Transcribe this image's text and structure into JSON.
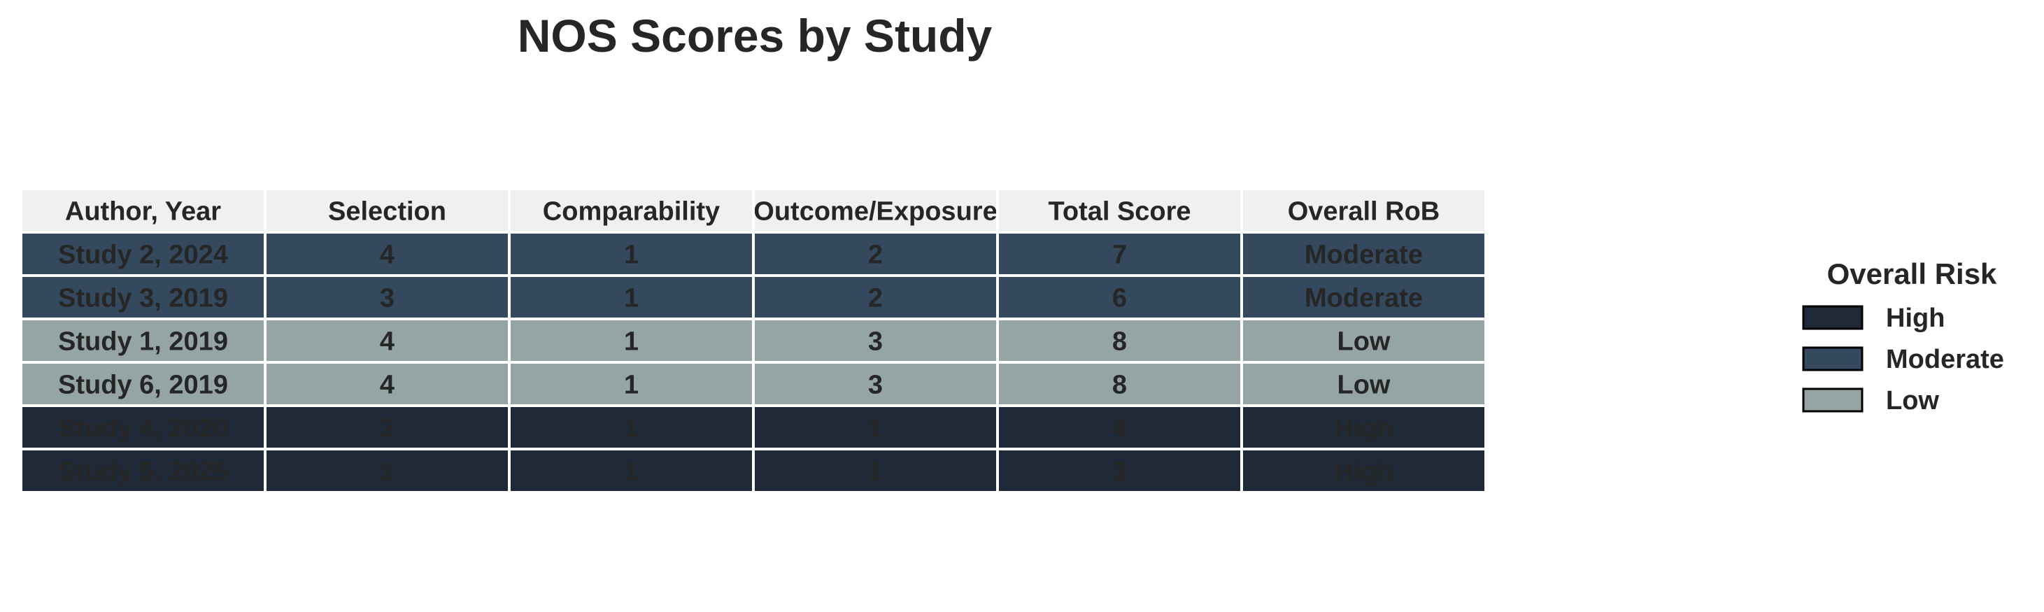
{
  "chart_data": {
    "type": "table",
    "title": "NOS Scores by Study",
    "columns": [
      "Author, Year",
      "Selection",
      "Comparability",
      "Outcome/Exposure",
      "Total Score",
      "Overall RoB"
    ],
    "rows": [
      [
        "Study 2, 2024",
        "4",
        "1",
        "2",
        "7",
        "Moderate"
      ],
      [
        "Study 3, 2019",
        "3",
        "1",
        "2",
        "6",
        "Moderate"
      ],
      [
        "Study 1, 2019",
        "4",
        "1",
        "3",
        "8",
        "Low"
      ],
      [
        "Study 6, 2019",
        "4",
        "1",
        "3",
        "8",
        "Low"
      ],
      [
        "Study 4, 2020",
        "2",
        "1",
        "1",
        "4",
        "High"
      ],
      [
        "Study 5, 2025",
        "1",
        "1",
        "1",
        "3",
        "High"
      ]
    ],
    "legend": {
      "title": "Overall Risk",
      "placement": "right",
      "items": [
        {
          "label": "High",
          "color": "#1f2937"
        },
        {
          "label": "Moderate",
          "color": "#34495e"
        },
        {
          "label": "Low",
          "color": "#95a5a6"
        }
      ]
    },
    "colors": {
      "header_bg": "#f0f0f0",
      "High": "#1f2937",
      "Moderate": "#34495e",
      "Low": "#95a5a6",
      "cell_text": "#262626",
      "grid": "#ffffff"
    }
  }
}
